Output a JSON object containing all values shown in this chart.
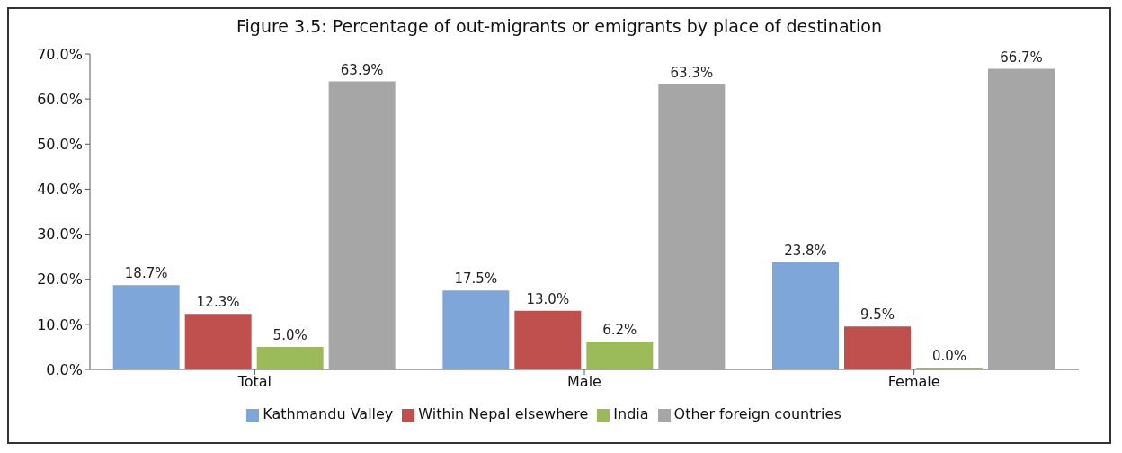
{
  "chart_data": {
    "type": "bar",
    "title": "Figure 3.5: Percentage of out-migrants or emigrants by place of destination",
    "categories": [
      "Total",
      "Male",
      "Female"
    ],
    "series": [
      {
        "name": "Kathmandu Valley",
        "color": "#7ea6d8",
        "values": [
          18.7,
          17.5,
          23.8
        ],
        "value_labels": [
          "18.7%",
          "17.5%",
          "23.8%"
        ]
      },
      {
        "name": "Within Nepal elsewhere",
        "color": "#c0504d",
        "values": [
          12.3,
          13.0,
          9.5
        ],
        "value_labels": [
          "12.3%",
          "13.0%",
          "9.5%"
        ]
      },
      {
        "name": "India",
        "color": "#9bbb59",
        "values": [
          5.0,
          6.2,
          0.0
        ],
        "value_labels": [
          "5.0%",
          "6.2%",
          "0.0%"
        ]
      },
      {
        "name": "Other foreign countries",
        "color": "#a6a6a6",
        "values": [
          63.9,
          63.3,
          66.7
        ],
        "value_labels": [
          "63.9%",
          "63.3%",
          "66.7%"
        ]
      }
    ],
    "ylim": [
      0,
      70
    ],
    "yticks": [
      {
        "value": 0,
        "label": "0.0%"
      },
      {
        "value": 10,
        "label": "10.0%"
      },
      {
        "value": 20,
        "label": "20.0%"
      },
      {
        "value": 30,
        "label": "30.0%"
      },
      {
        "value": 40,
        "label": "40.0%"
      },
      {
        "value": 50,
        "label": "50.0%"
      },
      {
        "value": 60,
        "label": "60.0%"
      },
      {
        "value": 70,
        "label": "70.0%"
      }
    ],
    "grid": false,
    "legend": "bottom"
  }
}
